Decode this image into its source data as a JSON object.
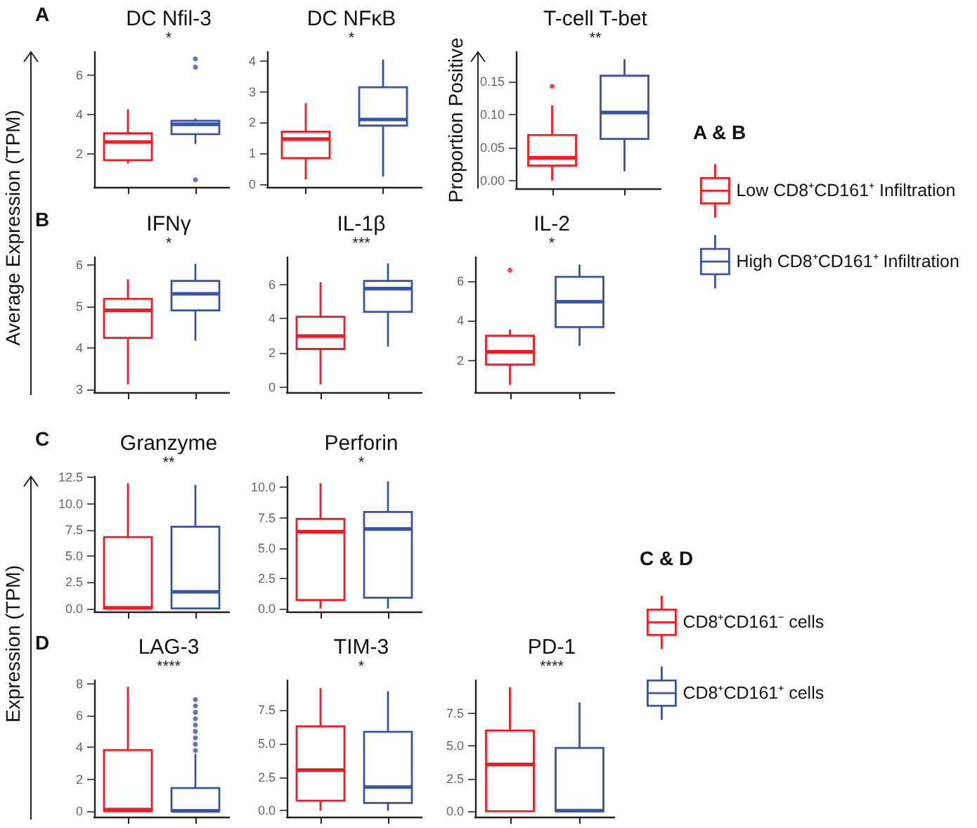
{
  "chart_data": [
    {
      "type": "box",
      "title": "DC Nfil-3",
      "subtitle": "*",
      "ylabel": "Average Expression (TPM)",
      "annotations": [
        "A"
      ],
      "categories": [
        null,
        null
      ],
      "ylim": [
        0.3,
        7.2
      ],
      "yticks": [
        2,
        4,
        6
      ],
      "grid": false,
      "series": [
        {
          "color": "#ee1d23",
          "boxes": [
            {
              "low": 1.5,
              "q1": 1.67,
              "median": 2.6,
              "q3": 3.04,
              "high": 4.27
            },
            null
          ]
        },
        {
          "color": "#3a53a4",
          "boxes": [
            null,
            {
              "low": 2.5,
              "q1": 3.0,
              "median": 3.5,
              "q3": 3.68,
              "high": 3.8,
              "outliers": [
                6.85,
                6.43,
                0.67
              ]
            }
          ]
        }
      ]
    },
    {
      "type": "box",
      "title": "DC NFκB",
      "subtitle": "*",
      "categories": [
        null,
        null
      ],
      "ylim": [
        -0.1,
        4.3
      ],
      "yticks": [
        0,
        1,
        2,
        3,
        4
      ],
      "grid": false,
      "series": [
        {
          "color": "#ee1d23",
          "boxes": [
            {
              "low": 0.15,
              "q1": 0.84,
              "median": 1.46,
              "q3": 1.7,
              "high": 2.63
            },
            null
          ]
        },
        {
          "color": "#3a53a4",
          "boxes": [
            null,
            {
              "low": 0.24,
              "q1": 1.9,
              "median": 2.1,
              "q3": 3.15,
              "high": 4.05
            }
          ]
        }
      ]
    },
    {
      "type": "box",
      "title": "T-cell T-bet",
      "subtitle": "**",
      "ylabel": "Proportion Positive",
      "legend": "right",
      "legend_title": "A & B",
      "categories": [
        null,
        null
      ],
      "ylim": [
        -0.012,
        0.195
      ],
      "yticks": [
        {
          "value": 0,
          "label": "0.00"
        },
        0.05,
        {
          "value": 0.1,
          "label": "0.10"
        },
        0.15
      ],
      "grid": false,
      "series": [
        {
          "name": "Low CD8⁺CD161⁺ Infiltration",
          "color": "#ee1d23",
          "boxes": [
            {
              "low": 0.0,
              "q1": 0.0225,
              "median": 0.0345,
              "q3": 0.069,
              "high": 0.114,
              "outliers": [
                0.143
              ]
            },
            null
          ]
        },
        {
          "name": "High CD8⁺CD161⁺ Infiltration",
          "color": "#3a53a4",
          "boxes": [
            null,
            {
              "low": 0.014,
              "q1": 0.063,
              "median": 0.103,
              "q3": 0.159,
              "high": 0.184
            }
          ]
        }
      ]
    },
    {
      "type": "box",
      "title": "IFNγ",
      "subtitle": "*",
      "annotations": [
        "B"
      ],
      "categories": [
        null,
        null
      ],
      "ylim": [
        2.93,
        6.18
      ],
      "yticks": [
        3,
        4,
        5,
        6
      ],
      "grid": false,
      "series": [
        {
          "color": "#ee1d23",
          "boxes": [
            {
              "low": 3.12,
              "q1": 4.24,
              "median": 4.9,
              "q3": 5.18,
              "high": 5.65
            },
            null
          ]
        },
        {
          "color": "#3a53a4",
          "boxes": [
            null,
            {
              "low": 4.17,
              "q1": 4.9,
              "median": 5.3,
              "q3": 5.61,
              "high": 6.02
            }
          ]
        }
      ]
    },
    {
      "type": "box",
      "title": "IL-1β",
      "subtitle": "***",
      "categories": [
        null,
        null
      ],
      "ylim": [
        -0.3,
        7.6
      ],
      "yticks": [
        0,
        2,
        4,
        6
      ],
      "grid": false,
      "series": [
        {
          "color": "#ee1d23",
          "boxes": [
            {
              "low": 0.16,
              "q1": 2.23,
              "median": 2.99,
              "q3": 4.12,
              "high": 6.14
            },
            null
          ]
        },
        {
          "color": "#3a53a4",
          "boxes": [
            null,
            {
              "low": 2.37,
              "q1": 4.41,
              "median": 5.76,
              "q3": 6.22,
              "high": 7.24
            }
          ]
        }
      ]
    },
    {
      "type": "box",
      "title": "IL-2",
      "subtitle": "*",
      "categories": [
        null,
        null
      ],
      "ylim": [
        0.4,
        7.2
      ],
      "yticks": [
        2,
        4,
        6
      ],
      "grid": false,
      "series": [
        {
          "color": "#ee1d23",
          "boxes": [
            {
              "low": 0.77,
              "q1": 1.79,
              "median": 2.44,
              "q3": 3.25,
              "high": 3.55,
              "outliers": [
                6.55
              ]
            },
            null
          ]
        },
        {
          "color": "#3a53a4",
          "boxes": [
            null,
            {
              "low": 2.74,
              "q1": 3.68,
              "median": 4.96,
              "q3": 6.21,
              "high": 6.83
            }
          ]
        }
      ]
    },
    {
      "type": "box",
      "title": "Granzyme",
      "subtitle": "**",
      "ylabel": "Expression (TPM)",
      "annotations": [
        "C"
      ],
      "categories": [
        null,
        null
      ],
      "ylim": [
        -0.3,
        12.6
      ],
      "yticks": [
        {
          "value": 0,
          "label": "0.0"
        },
        2.5,
        {
          "value": 5,
          "label": "5.0"
        },
        7.5,
        {
          "value": 10,
          "label": "10.0"
        },
        12.5
      ],
      "grid": false,
      "series": [
        {
          "color": "#ee1d23",
          "boxes": [
            {
              "low": 0,
              "q1": 0,
              "median": 0.05,
              "q3": 6.81,
              "high": 11.97
            },
            null
          ]
        },
        {
          "color": "#3a53a4",
          "boxes": [
            null,
            {
              "low": 0,
              "q1": 0,
              "median": 1.58,
              "q3": 7.8,
              "high": 11.8
            }
          ]
        }
      ]
    },
    {
      "type": "box",
      "title": "Perforin",
      "subtitle": "*",
      "categories": [
        null,
        null
      ],
      "ylim": [
        -0.25,
        10.9
      ],
      "yticks": [
        {
          "value": 0,
          "label": "0.0"
        },
        2.5,
        {
          "value": 5,
          "label": "5.0"
        },
        7.5,
        {
          "value": 10,
          "label": "10.0"
        }
      ],
      "grid": false,
      "series": [
        {
          "color": "#ee1d23",
          "boxes": [
            {
              "low": 0,
              "q1": 0.7,
              "median": 6.35,
              "q3": 7.4,
              "high": 10.35
            },
            null
          ]
        },
        {
          "color": "#3a53a4",
          "boxes": [
            null,
            {
              "low": 0,
              "q1": 0.89,
              "median": 6.57,
              "q3": 7.97,
              "high": 10.5
            }
          ]
        }
      ]
    },
    {
      "type": "box",
      "title": "LAG-3",
      "subtitle": "****",
      "annotations": [
        "D"
      ],
      "categories": [
        null,
        null
      ],
      "ylim": [
        -0.35,
        8.2
      ],
      "yticks": [
        0,
        2,
        4,
        6,
        8
      ],
      "grid": false,
      "series": [
        {
          "color": "#ee1d23",
          "boxes": [
            {
              "low": 0,
              "q1": 0,
              "median": 0.1,
              "q3": 3.83,
              "high": 7.8
            },
            null
          ]
        },
        {
          "color": "#3a53a4",
          "boxes": [
            null,
            {
              "low": 0,
              "q1": 0,
              "median": 0.02,
              "q3": 1.45,
              "high": 3.6,
              "outliers": [
                3.8,
                4.2,
                4.6,
                5.0,
                5.4,
                5.8,
                6.2,
                6.6,
                7.0
              ]
            }
          ]
        }
      ]
    },
    {
      "type": "box",
      "title": "TIM-3",
      "subtitle": "*",
      "categories": [
        null,
        null
      ],
      "ylim": [
        -0.45,
        9.7
      ],
      "yticks": [
        {
          "value": 0,
          "label": "0.0"
        },
        2.5,
        {
          "value": 5,
          "label": "5.0"
        },
        7.5
      ],
      "grid": false,
      "series": [
        {
          "color": "#ee1d23",
          "boxes": [
            {
              "low": 0,
              "q1": 0.75,
              "median": 3.02,
              "q3": 6.28,
              "high": 9.13
            },
            null
          ]
        },
        {
          "color": "#3a53a4",
          "boxes": [
            null,
            {
              "low": 0,
              "q1": 0.58,
              "median": 1.76,
              "q3": 5.87,
              "high": 8.89
            }
          ]
        }
      ]
    },
    {
      "type": "box",
      "title": "PD-1",
      "subtitle": "****",
      "legend": "right",
      "legend_title": "C & D",
      "categories": [
        null,
        null
      ],
      "ylim": [
        -0.42,
        10.0
      ],
      "yticks": [
        {
          "value": 0,
          "label": "0.0"
        },
        2.5,
        {
          "value": 5,
          "label": "5.0"
        },
        7.5
      ],
      "grid": false,
      "series": [
        {
          "name": "CD8⁺CD161⁻ cells",
          "color": "#ee1d23",
          "boxes": [
            {
              "low": 0,
              "q1": 0,
              "median": 3.58,
              "q3": 6.17,
              "high": 9.47
            },
            null
          ]
        },
        {
          "name": "CD8⁺CD161⁺ cells",
          "color": "#3a53a4",
          "boxes": [
            null,
            {
              "low": 0,
              "q1": 0,
              "median": 0.05,
              "q3": 4.84,
              "high": 8.31
            }
          ]
        }
      ]
    }
  ]
}
